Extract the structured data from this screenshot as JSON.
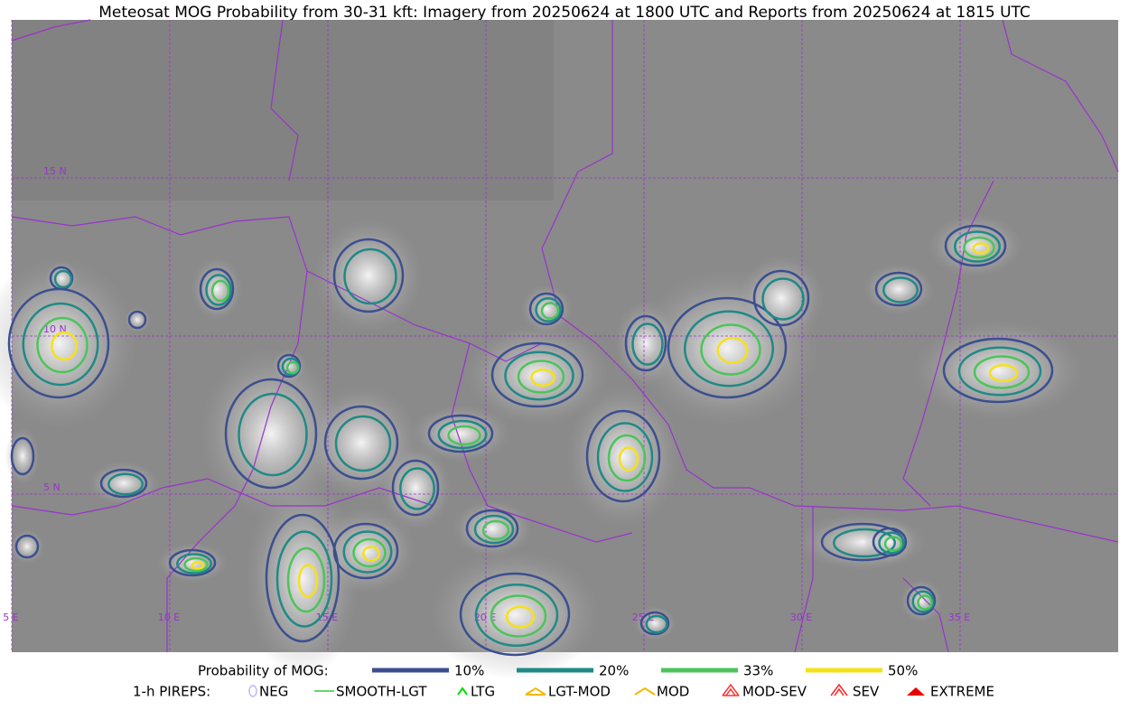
{
  "title": "Meteosat MOG Probability from 30-31 kft: Imagery from 20250624 at 1800 UTC and Reports from 20250624 at 1815 UTC",
  "grid_labels": {
    "latitudes": [
      "15 N",
      "10 N",
      "5 N"
    ],
    "longitudes": [
      "5 E",
      "10 E",
      "15 E",
      "20 E",
      "25 E",
      "30 E",
      "35 E"
    ]
  },
  "legend": {
    "probability": {
      "label": "Probability of MOG:",
      "items": [
        {
          "label": "10%",
          "color": "#3b4f8f"
        },
        {
          "label": "20%",
          "color": "#1f8a85"
        },
        {
          "label": "33%",
          "color": "#4cc45a"
        },
        {
          "label": "50%",
          "color": "#f5e11a"
        }
      ]
    },
    "pireps": {
      "label": "1-h PIREPS:",
      "items": [
        {
          "label": "NEG",
          "color": "#b8b8ff"
        },
        {
          "label": "SMOOTH-LGT",
          "color": "#33cc33"
        },
        {
          "label": "LTG",
          "color": "#00dd00"
        },
        {
          "label": "LGT-MOD",
          "color": "#f5b800"
        },
        {
          "label": "MOD",
          "color": "#f5b800"
        },
        {
          "label": "MOD-SEV",
          "color": "#ff3030"
        },
        {
          "label": "SEV",
          "color": "#ff2020"
        },
        {
          "label": "EXTREME",
          "color": "#ee0000"
        }
      ]
    }
  }
}
